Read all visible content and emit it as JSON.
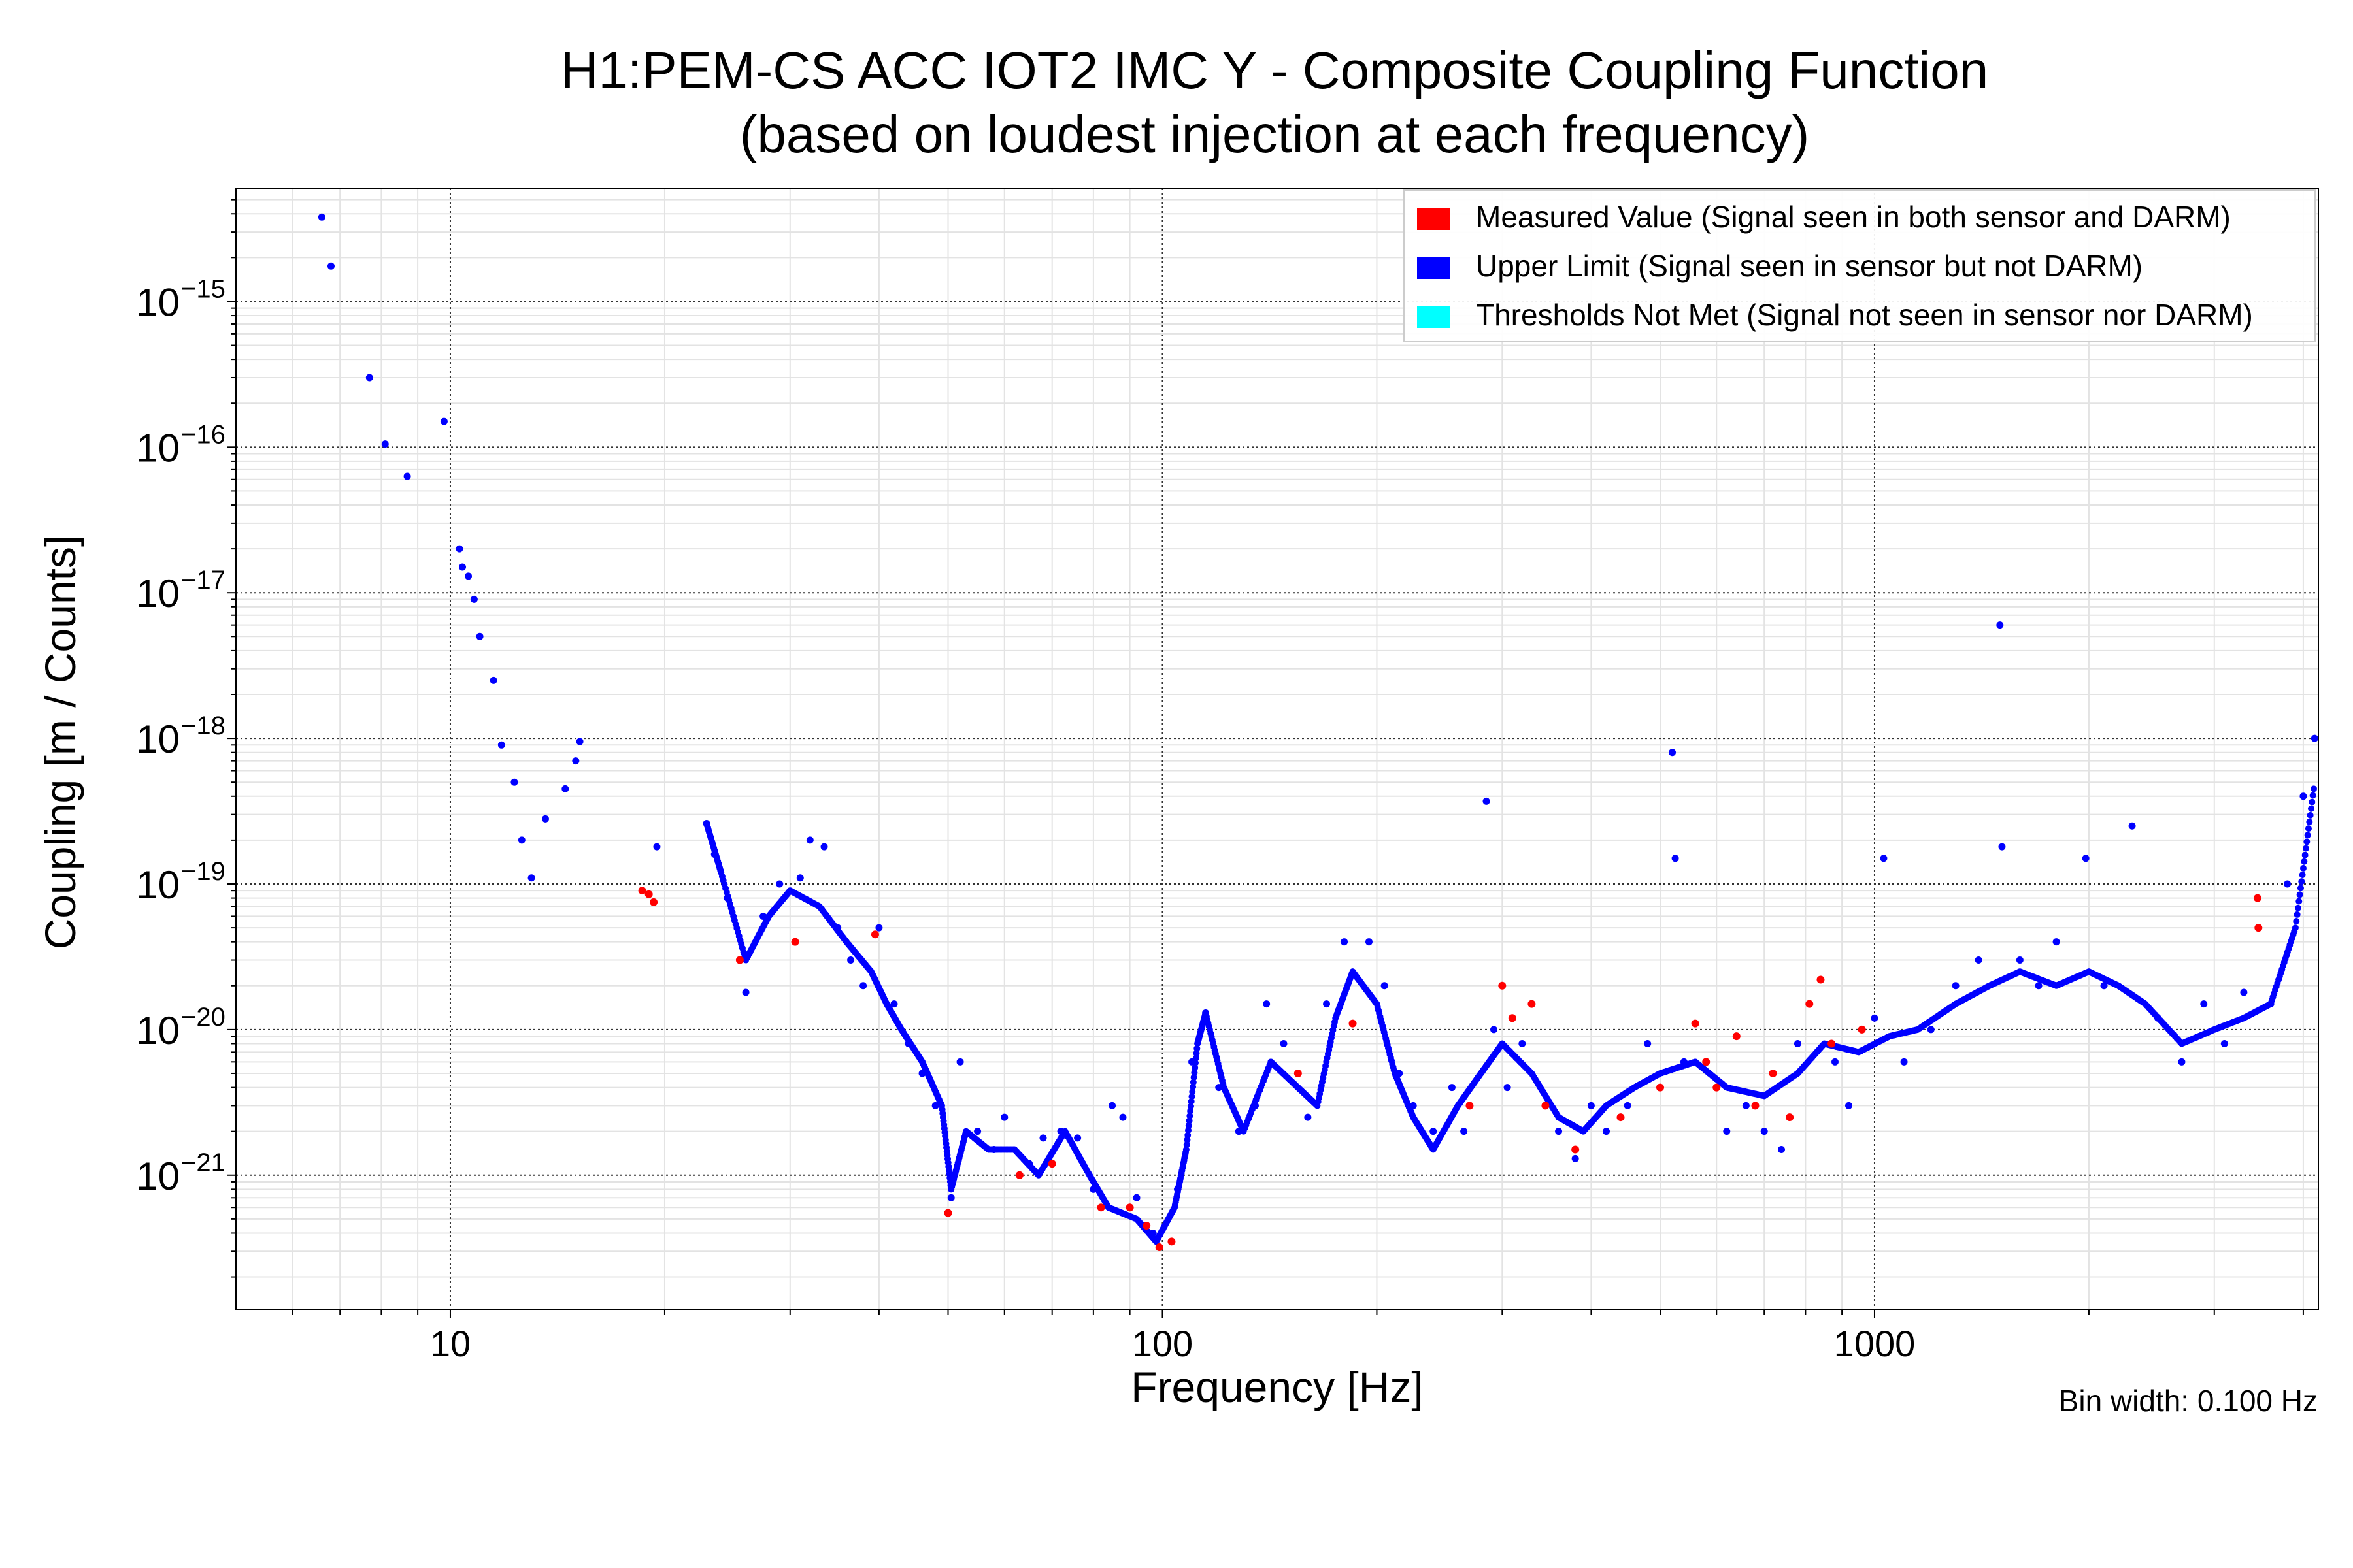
{
  "chart_data": {
    "type": "scatter",
    "title_line1": "H1:PEM-CS ACC IOT2 IMC Y - Composite Coupling Function",
    "title_line2": "(based on loudest injection at each frequency)",
    "xlabel": "Frequency [Hz]",
    "ylabel": "Coupling [m / Counts]",
    "xscale": "log",
    "yscale": "log",
    "xlim": [
      5,
      4200
    ],
    "ylim": [
      1.2e-22,
      6e-15
    ],
    "grid": true,
    "legend_position": "top-right",
    "annotation": "Bin width: 0.100 Hz",
    "x_ticks": [
      {
        "value": 10,
        "label": "10"
      },
      {
        "value": 100,
        "label": "100"
      },
      {
        "value": 1000,
        "label": "1000"
      }
    ],
    "y_ticks": [
      {
        "value": 1e-15,
        "base": "10",
        "exp": "−15"
      },
      {
        "value": 1e-16,
        "base": "10",
        "exp": "−16"
      },
      {
        "value": 1e-17,
        "base": "10",
        "exp": "−17"
      },
      {
        "value": 1e-18,
        "base": "10",
        "exp": "−18"
      },
      {
        "value": 1e-19,
        "base": "10",
        "exp": "−19"
      },
      {
        "value": 1e-20,
        "base": "10",
        "exp": "−20"
      },
      {
        "value": 1e-21,
        "base": "10",
        "exp": "−21"
      }
    ],
    "legend": [
      {
        "label": "Measured Value (Signal seen in both sensor and DARM)",
        "color": "#ff0000"
      },
      {
        "label": "Upper Limit (Signal seen in sensor but not DARM)",
        "color": "#0000ff"
      },
      {
        "label": "Thresholds Not Met (Signal not seen in sensor nor DARM)",
        "color": "#00ffff"
      }
    ],
    "series": [
      {
        "name": "Measured Value",
        "color": "#ff0000",
        "points": [
          [
            18.6,
            9e-20
          ],
          [
            19.0,
            8.5e-20
          ],
          [
            19.3,
            7.5e-20
          ],
          [
            25.5,
            3e-20
          ],
          [
            30.5,
            4e-20
          ],
          [
            39.5,
            4.5e-20
          ],
          [
            50.0,
            5.5e-22
          ],
          [
            63.0,
            1e-21
          ],
          [
            70.0,
            1.2e-21
          ],
          [
            82.0,
            6e-22
          ],
          [
            90.0,
            6e-22
          ],
          [
            95.0,
            4.5e-22
          ],
          [
            99.0,
            3.2e-22
          ],
          [
            103.0,
            3.5e-22
          ],
          [
            155.0,
            5e-21
          ],
          [
            185.0,
            1.1e-20
          ],
          [
            270.0,
            3e-21
          ],
          [
            300.0,
            2e-20
          ],
          [
            310.0,
            1.2e-20
          ],
          [
            330.0,
            1.5e-20
          ],
          [
            345.0,
            3e-21
          ],
          [
            380.0,
            1.5e-21
          ],
          [
            440.0,
            2.5e-21
          ],
          [
            500.0,
            4e-21
          ],
          [
            560.0,
            1.1e-20
          ],
          [
            580.0,
            6e-21
          ],
          [
            600.0,
            4e-21
          ],
          [
            640.0,
            9e-21
          ],
          [
            680.0,
            3e-21
          ],
          [
            720.0,
            5e-21
          ],
          [
            760.0,
            2.5e-21
          ],
          [
            810.0,
            1.5e-20
          ],
          [
            840.0,
            2.2e-20
          ],
          [
            870.0,
            8e-21
          ],
          [
            960.0,
            1e-20
          ],
          [
            3450.0,
            8e-20
          ],
          [
            3460.0,
            5e-20
          ]
        ]
      },
      {
        "name": "Upper Limit",
        "color": "#0000ff",
        "points": [
          [
            6.6,
            3.8e-15
          ],
          [
            6.8,
            1.75e-15
          ],
          [
            7.7,
            3e-16
          ],
          [
            8.1,
            1.05e-16
          ],
          [
            8.7,
            6.3e-17
          ],
          [
            9.8,
            1.5e-16
          ],
          [
            10.3,
            2e-17
          ],
          [
            10.4,
            1.5e-17
          ],
          [
            10.6,
            1.3e-17
          ],
          [
            10.8,
            9e-18
          ],
          [
            11.0,
            5e-18
          ],
          [
            11.5,
            2.5e-18
          ],
          [
            11.8,
            9e-19
          ],
          [
            12.3,
            5e-19
          ],
          [
            12.6,
            2e-19
          ],
          [
            13.0,
            1.1e-19
          ],
          [
            13.6,
            2.8e-19
          ],
          [
            14.5,
            4.5e-19
          ],
          [
            15.0,
            7e-19
          ],
          [
            15.2,
            9.5e-19
          ],
          [
            19.5,
            1.8e-19
          ],
          [
            22.9,
            2.6e-19
          ],
          [
            23.5,
            1.6e-19
          ],
          [
            24.5,
            8e-20
          ],
          [
            26.0,
            1.8e-20
          ],
          [
            27.5,
            6e-20
          ],
          [
            29.0,
            1e-19
          ],
          [
            31.0,
            1.1e-19
          ],
          [
            32.0,
            2e-19
          ],
          [
            33.5,
            1.8e-19
          ],
          [
            35.0,
            5e-20
          ],
          [
            36.5,
            3e-20
          ],
          [
            38.0,
            2e-20
          ],
          [
            40.0,
            5e-20
          ],
          [
            42.0,
            1.5e-20
          ],
          [
            44.0,
            8e-21
          ],
          [
            46.0,
            5e-21
          ],
          [
            48.0,
            3e-21
          ],
          [
            50.5,
            7e-22
          ],
          [
            52.0,
            6e-21
          ],
          [
            55.0,
            2e-21
          ],
          [
            58.0,
            1.5e-21
          ],
          [
            60.0,
            2.5e-21
          ],
          [
            65.0,
            1.2e-21
          ],
          [
            68.0,
            1.8e-21
          ],
          [
            72.0,
            2e-21
          ],
          [
            76.0,
            1.8e-21
          ],
          [
            80.0,
            8e-22
          ],
          [
            85.0,
            3e-21
          ],
          [
            88.0,
            2.5e-21
          ],
          [
            92.0,
            7e-22
          ],
          [
            97.0,
            4e-22
          ],
          [
            105.0,
            8e-22
          ],
          [
            110.0,
            6e-21
          ],
          [
            115.0,
            1.3e-20
          ],
          [
            120.0,
            4e-21
          ],
          [
            128.0,
            2e-21
          ],
          [
            135.0,
            3e-21
          ],
          [
            140.0,
            1.5e-20
          ],
          [
            148.0,
            8e-21
          ],
          [
            160.0,
            2.5e-21
          ],
          [
            170.0,
            1.5e-20
          ],
          [
            180.0,
            4e-20
          ],
          [
            195.0,
            4e-20
          ],
          [
            205.0,
            2e-20
          ],
          [
            215.0,
            5e-21
          ],
          [
            225.0,
            3e-21
          ],
          [
            240.0,
            2e-21
          ],
          [
            255.0,
            4e-21
          ],
          [
            265.0,
            2e-21
          ],
          [
            285.0,
            3.7e-19
          ],
          [
            292.0,
            1e-20
          ],
          [
            305.0,
            4e-21
          ],
          [
            320.0,
            8e-21
          ],
          [
            360.0,
            2e-21
          ],
          [
            380.0,
            1.3e-21
          ],
          [
            400.0,
            3e-21
          ],
          [
            420.0,
            2e-21
          ],
          [
            450.0,
            3e-21
          ],
          [
            480.0,
            8e-21
          ],
          [
            520.0,
            8e-19
          ],
          [
            525.0,
            1.5e-19
          ],
          [
            540.0,
            6e-21
          ],
          [
            620.0,
            2e-21
          ],
          [
            660.0,
            3e-21
          ],
          [
            700.0,
            2e-21
          ],
          [
            740.0,
            1.5e-21
          ],
          [
            780.0,
            8e-21
          ],
          [
            880.0,
            6e-21
          ],
          [
            920.0,
            3e-21
          ],
          [
            1000.0,
            1.2e-20
          ],
          [
            1030.0,
            1.5e-19
          ],
          [
            1100.0,
            6e-21
          ],
          [
            1200.0,
            1e-20
          ],
          [
            1300.0,
            2e-20
          ],
          [
            1400.0,
            3e-20
          ],
          [
            1500.0,
            6e-18
          ],
          [
            1510.0,
            1.8e-19
          ],
          [
            1600.0,
            3e-20
          ],
          [
            1700.0,
            2e-20
          ],
          [
            1800.0,
            4e-20
          ],
          [
            1980.0,
            1.5e-19
          ],
          [
            2100.0,
            2e-20
          ],
          [
            2300.0,
            2.5e-19
          ],
          [
            2500.0,
            1.2e-20
          ],
          [
            2700.0,
            6e-21
          ],
          [
            2900.0,
            1.5e-20
          ],
          [
            3100.0,
            8e-21
          ],
          [
            3300.0,
            1.8e-20
          ],
          [
            3600.0,
            1.5e-20
          ],
          [
            3800.0,
            1e-19
          ],
          [
            4000.0,
            4e-19
          ],
          [
            4150.0,
            1e-18
          ]
        ]
      },
      {
        "name": "Thresholds Not Met",
        "color": "#00ffff",
        "points": []
      }
    ],
    "upper_limit_trace": [
      [
        22.9,
        2.6e-19
      ],
      [
        24.0,
        1.2e-19
      ],
      [
        26.0,
        3e-20
      ],
      [
        28.0,
        6e-20
      ],
      [
        30.0,
        9e-20
      ],
      [
        33.0,
        7e-20
      ],
      [
        36.0,
        4e-20
      ],
      [
        39.0,
        2.5e-20
      ],
      [
        41.0,
        1.5e-20
      ],
      [
        43.0,
        1e-20
      ],
      [
        46.0,
        6e-21
      ],
      [
        49.0,
        3e-21
      ],
      [
        50.5,
        8e-22
      ],
      [
        53.0,
        2e-21
      ],
      [
        57.0,
        1.5e-21
      ],
      [
        62.0,
        1.5e-21
      ],
      [
        67.0,
        1e-21
      ],
      [
        73.0,
        2e-21
      ],
      [
        79.0,
        1e-21
      ],
      [
        84.0,
        6e-22
      ],
      [
        92.0,
        5e-22
      ],
      [
        98.0,
        3.5e-22
      ],
      [
        104.0,
        6e-22
      ],
      [
        108.0,
        1.5e-21
      ],
      [
        112.0,
        8e-21
      ],
      [
        115.0,
        1.3e-20
      ],
      [
        122.0,
        4e-21
      ],
      [
        130.0,
        2e-21
      ],
      [
        142.0,
        6e-21
      ],
      [
        155.0,
        4e-21
      ],
      [
        165.0,
        3e-21
      ],
      [
        175.0,
        1.2e-20
      ],
      [
        185.0,
        2.5e-20
      ],
      [
        200.0,
        1.5e-20
      ],
      [
        212.0,
        5e-21
      ],
      [
        225.0,
        2.5e-21
      ],
      [
        240.0,
        1.5e-21
      ],
      [
        260.0,
        3e-21
      ],
      [
        280.0,
        5e-21
      ],
      [
        300.0,
        8e-21
      ],
      [
        330.0,
        5e-21
      ],
      [
        360.0,
        2.5e-21
      ],
      [
        390.0,
        2e-21
      ],
      [
        420.0,
        3e-21
      ],
      [
        460.0,
        4e-21
      ],
      [
        500.0,
        5e-21
      ],
      [
        560.0,
        6e-21
      ],
      [
        620.0,
        4e-21
      ],
      [
        700.0,
        3.5e-21
      ],
      [
        780.0,
        5e-21
      ],
      [
        850.0,
        8e-21
      ],
      [
        950.0,
        7e-21
      ],
      [
        1050.0,
        9e-21
      ],
      [
        1150.0,
        1e-20
      ],
      [
        1300.0,
        1.5e-20
      ],
      [
        1450.0,
        2e-20
      ],
      [
        1600.0,
        2.5e-20
      ],
      [
        1800.0,
        2e-20
      ],
      [
        2000.0,
        2.5e-20
      ],
      [
        2200.0,
        2e-20
      ],
      [
        2400.0,
        1.5e-20
      ],
      [
        2700.0,
        8e-21
      ],
      [
        3000.0,
        1e-20
      ],
      [
        3300.0,
        1.2e-20
      ],
      [
        3600.0,
        1.5e-20
      ],
      [
        3900.0,
        5e-20
      ],
      [
        4150.0,
        5e-19
      ]
    ]
  }
}
